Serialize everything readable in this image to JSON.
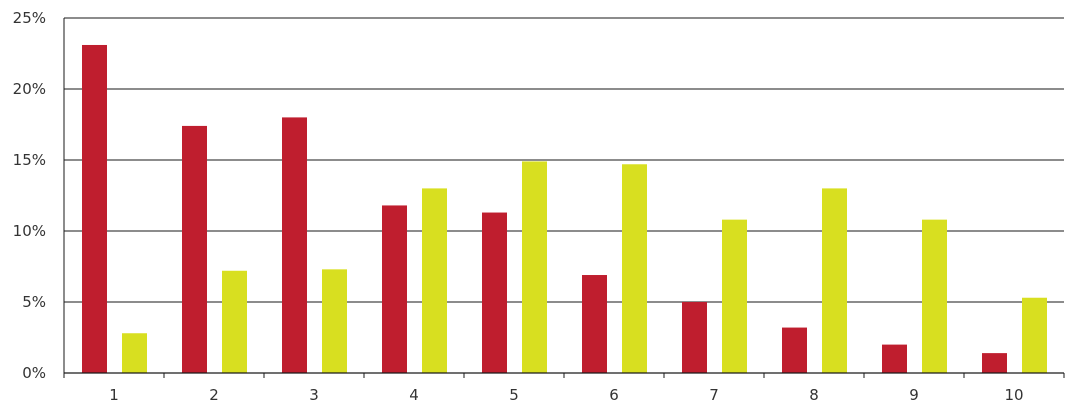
{
  "chart_data": {
    "type": "bar",
    "title": "",
    "xlabel": "",
    "ylabel": "",
    "categories": [
      "1",
      "2",
      "3",
      "4",
      "5",
      "6",
      "7",
      "8",
      "9",
      "10"
    ],
    "ylim": [
      0,
      25
    ],
    "yticks": [
      "0%",
      "5%",
      "10%",
      "15%",
      "20%",
      "25%"
    ],
    "grid": true,
    "series": [
      {
        "color": "#bf1e2e",
        "values": [
          23.1,
          17.4,
          18.0,
          11.8,
          11.3,
          6.9,
          5.0,
          3.2,
          2.0,
          1.4
        ]
      },
      {
        "color": "#d8df20",
        "values": [
          2.8,
          7.2,
          7.3,
          13.0,
          14.9,
          14.7,
          10.8,
          13.0,
          10.8,
          5.3
        ]
      }
    ]
  }
}
